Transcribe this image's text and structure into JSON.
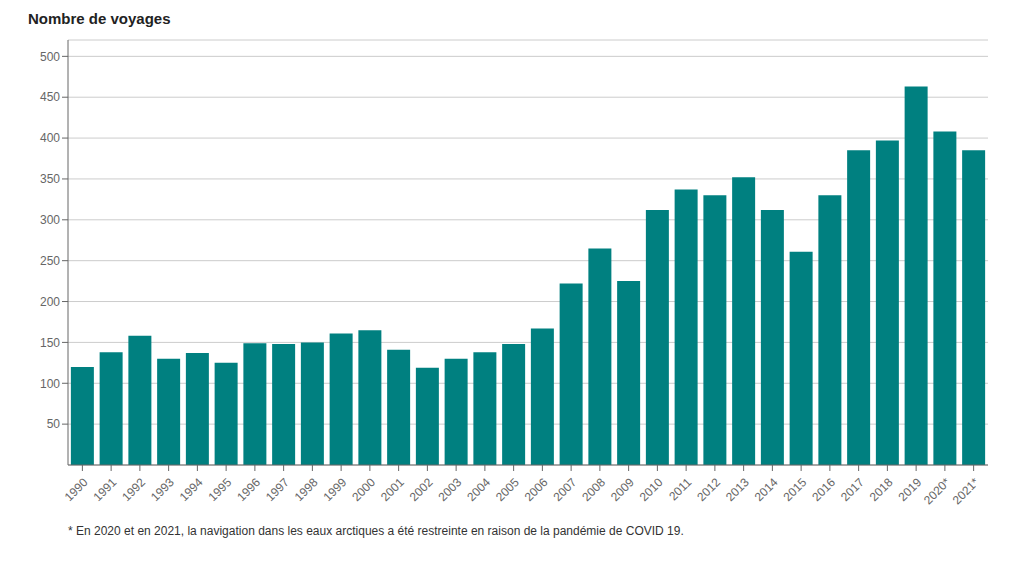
{
  "chart_data": {
    "type": "bar",
    "ylabel": "Nombre de voyages",
    "categories": [
      "1990",
      "1991",
      "1992",
      "1993",
      "1994",
      "1995",
      "1996",
      "1997",
      "1998",
      "1999",
      "2000",
      "2001",
      "2002",
      "2003",
      "2004",
      "2005",
      "2006",
      "2007",
      "2008",
      "2009",
      "2010",
      "2011",
      "2012",
      "2013",
      "2014",
      "2015",
      "2016",
      "2017",
      "2018",
      "2019",
      "2020*",
      "2021*"
    ],
    "values": [
      120,
      138,
      158,
      130,
      137,
      125,
      149,
      148,
      150,
      161,
      165,
      141,
      119,
      130,
      138,
      148,
      167,
      222,
      265,
      225,
      312,
      337,
      330,
      352,
      312,
      261,
      330,
      385,
      397,
      463,
      408,
      385
    ],
    "color": "#008080",
    "ylim": [
      0,
      520
    ],
    "yticks": [
      50,
      100,
      150,
      200,
      250,
      300,
      350,
      400,
      450,
      500
    ],
    "grid": true,
    "annotations": [
      "* En 2020 et en 2021, la navigation dans les eaux arctiques a été restreinte en raison de la pandémie de COVID 19."
    ]
  }
}
